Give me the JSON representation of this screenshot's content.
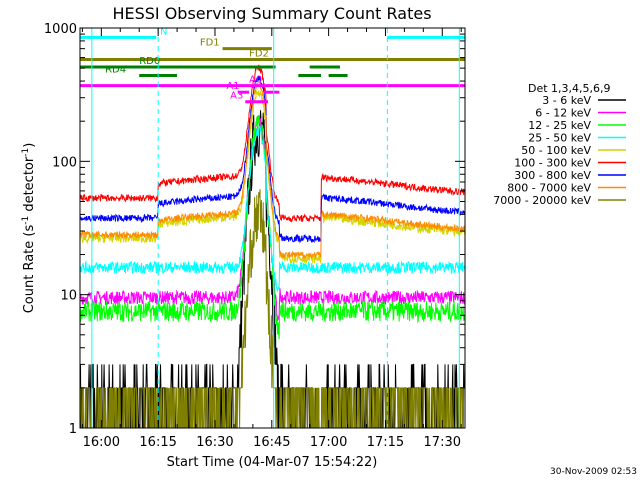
{
  "chart_data": {
    "type": "line",
    "title": "HESSI Observing Summary Count Rates",
    "xlabel": "Start Time (04-Mar-07 15:54:22)",
    "ylabel_main": "Count Rate (s",
    "ylabel_sup1": "-1",
    "ylabel_mid": " detector",
    "ylabel_sup2": "-1",
    "ylabel_end": ")",
    "yscale": "log",
    "ylim": [
      1,
      1000
    ],
    "xlim_minutes": [
      -5.63,
      96.0
    ],
    "x_ticks": [
      {
        "minute": 0,
        "label": "16:00"
      },
      {
        "minute": 15,
        "label": "16:15"
      },
      {
        "minute": 30,
        "label": "16:30"
      },
      {
        "minute": 45,
        "label": "16:45"
      },
      {
        "minute": 60,
        "label": "17:00"
      },
      {
        "minute": 75,
        "label": "17:15"
      },
      {
        "minute": 90,
        "label": "17:30"
      }
    ],
    "y_ticks": [
      {
        "value": 1,
        "label": "1"
      },
      {
        "value": 10,
        "label": "10"
      },
      {
        "value": 100,
        "label": "100"
      },
      {
        "value": 1000,
        "label": "1000"
      }
    ],
    "legend_title": "Det 1,3,4,5,6,9",
    "legend_position": "right",
    "timestamp": "30-Nov-2009 02:53",
    "series": [
      {
        "name": "3 - 6 keV",
        "color": "#000000",
        "base": 1.6,
        "noise": 0.55,
        "peak": 180,
        "step": 0
      },
      {
        "name": "6 - 12 keV",
        "color": "#ff00ff",
        "base": 9.5,
        "noise": 0.12,
        "peak": 200,
        "step": 0
      },
      {
        "name": "12 - 25 keV",
        "color": "#00ff00",
        "base": 7.5,
        "noise": 0.18,
        "peak": 190,
        "step": 0
      },
      {
        "name": "25 - 50 keV",
        "color": "#00ffff",
        "base": 16,
        "noise": 0.1,
        "peak": 170,
        "step": 0
      },
      {
        "name": "50 - 100 keV",
        "color": "#d4d400",
        "base": 34,
        "noise": 0.08,
        "peak": 330,
        "step": 1
      },
      {
        "name": "100 - 300 keV",
        "color": "#ff0000",
        "base": 68,
        "noise": 0.06,
        "peak": 500,
        "step": 1
      },
      {
        "name": "300 - 800 keV",
        "color": "#0000ff",
        "base": 48,
        "noise": 0.06,
        "peak": 420,
        "step": 1
      },
      {
        "name": "800 - 7000 keV",
        "color": "#ff8c00",
        "base": 36,
        "noise": 0.06,
        "peak": 380,
        "step": 1
      },
      {
        "name": "7000 - 20000 keV",
        "color": "#808000",
        "base": 1.5,
        "noise": 0.5,
        "peak": 40,
        "step": 0
      }
    ],
    "flags": [
      {
        "label": "N",
        "color": "#00ffff",
        "y": 850,
        "segments": [
          [
            -5.6,
            14.5
          ],
          [
            75.5,
            96
          ]
        ],
        "label_minute": 15.5
      },
      {
        "label": "FD1",
        "color": "#808000",
        "y": 700,
        "segments": [
          [
            32,
            45
          ]
        ],
        "label_minute": 26
      },
      {
        "label": "FD2",
        "color": "#808000",
        "y": 580,
        "segments": [
          [
            -5.6,
            96
          ]
        ],
        "label_minute": 39
      },
      {
        "label": "RD0",
        "color": "#008000",
        "y": 510,
        "segments": [
          [
            -5.6,
            46
          ],
          [
            55,
            63
          ]
        ],
        "label_minute": 10
      },
      {
        "label": "RD4",
        "color": "#008000",
        "y": 440,
        "segments": [
          [
            10,
            20
          ],
          [
            52,
            58
          ],
          [
            60,
            65
          ]
        ],
        "label_minute": 1
      },
      {
        "label": "A0",
        "color": "#ff00ff",
        "y": 370,
        "segments": [
          [
            -5.6,
            96
          ]
        ],
        "label_minute": 39
      },
      {
        "label": "A1",
        "color": "#ff00ff",
        "y": 330,
        "segments": [
          [
            36,
            39
          ],
          [
            43,
            47
          ]
        ],
        "label_minute": 33
      },
      {
        "label": "A3",
        "color": "#ff00ff",
        "y": 280,
        "segments": [
          [
            38,
            44
          ]
        ],
        "label_minute": 34
      }
    ],
    "vlines_minutes": [
      -2.5,
      15,
      45.5,
      75.5,
      94.5
    ],
    "peak_minute": 41.5
  }
}
